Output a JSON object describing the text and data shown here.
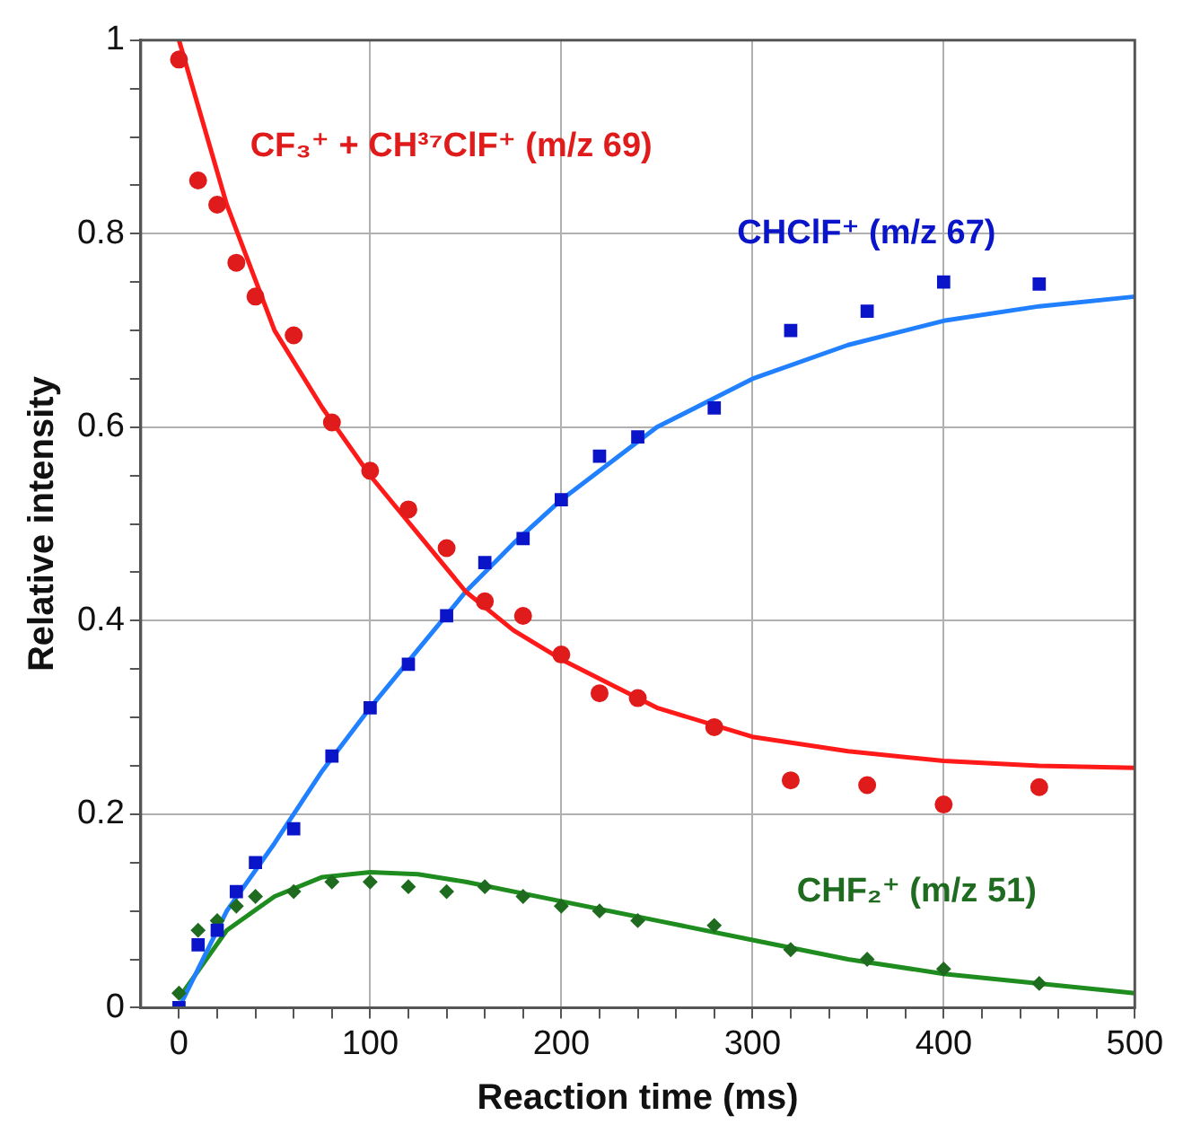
{
  "chart_data": {
    "type": "scatter",
    "xlabel": "Reaction time (ms)",
    "ylabel": "Relative intensity",
    "xlim": [
      -20,
      500
    ],
    "ylim": [
      0,
      1
    ],
    "xticks": [
      0,
      {
        "value": 20,
        "label": null
      },
      {
        "value": 40,
        "label": null
      },
      {
        "value": 60,
        "label": null
      },
      {
        "value": 80,
        "label": null
      },
      100,
      {
        "value": 120,
        "label": null
      },
      {
        "value": 140,
        "label": null
      },
      {
        "value": 160,
        "label": null
      },
      {
        "value": 180,
        "label": null
      },
      200,
      {
        "value": 220,
        "label": null
      },
      {
        "value": 240,
        "label": null
      },
      {
        "value": 260,
        "label": null
      },
      {
        "value": 280,
        "label": null
      },
      300,
      {
        "value": 320,
        "label": null
      },
      {
        "value": 340,
        "label": null
      },
      {
        "value": 360,
        "label": null
      },
      {
        "value": 380,
        "label": null
      },
      400,
      {
        "value": 420,
        "label": null
      },
      {
        "value": 440,
        "label": null
      },
      {
        "value": 460,
        "label": null
      },
      {
        "value": 480,
        "label": null
      },
      500
    ],
    "yticks": [
      0,
      {
        "value": 0.05,
        "label": null
      },
      {
        "value": 0.1,
        "label": null
      },
      {
        "value": 0.15,
        "label": null
      },
      0.2,
      {
        "value": 0.25,
        "label": null
      },
      {
        "value": 0.3,
        "label": null
      },
      {
        "value": 0.35,
        "label": null
      },
      0.4,
      {
        "value": 0.45,
        "label": null
      },
      {
        "value": 0.5,
        "label": null
      },
      {
        "value": 0.55,
        "label": null
      },
      0.6,
      {
        "value": 0.65,
        "label": null
      },
      {
        "value": 0.7,
        "label": null
      },
      {
        "value": 0.75,
        "label": null
      },
      0.8,
      {
        "value": 0.85,
        "label": null
      },
      {
        "value": 0.9,
        "label": null
      },
      {
        "value": 0.95,
        "label": null
      },
      1
    ],
    "grid": true,
    "legend": false,
    "series": [
      {
        "name": "CF₃⁺ + CH³⁷ClF⁺ (m/z 69)",
        "type": "scatter",
        "marker": "circle",
        "color": "#e01b1b",
        "x": [
          0,
          10,
          20,
          30,
          40,
          60,
          80,
          100,
          120,
          140,
          160,
          180,
          200,
          220,
          240,
          280,
          320,
          360,
          400,
          450
        ],
        "values": [
          0.98,
          0.855,
          0.83,
          0.77,
          0.735,
          0.695,
          0.605,
          0.555,
          0.515,
          0.475,
          0.42,
          0.405,
          0.365,
          0.325,
          0.32,
          0.29,
          0.235,
          0.23,
          0.21,
          0.228
        ]
      },
      {
        "name": "CHClF⁺ (m/z 67)",
        "type": "scatter",
        "marker": "square",
        "color": "#0a14c8",
        "x": [
          0,
          10,
          20,
          30,
          40,
          60,
          80,
          100,
          120,
          140,
          160,
          180,
          200,
          220,
          240,
          280,
          320,
          360,
          400,
          450
        ],
        "values": [
          0.0,
          0.065,
          0.08,
          0.12,
          0.15,
          0.185,
          0.26,
          0.31,
          0.355,
          0.405,
          0.46,
          0.485,
          0.525,
          0.57,
          0.59,
          0.62,
          0.7,
          0.72,
          0.75,
          0.748
        ]
      },
      {
        "name": "CHF₂⁺ (m/z 51)",
        "type": "scatter",
        "marker": "diamond",
        "color": "#1f6b1f",
        "x": [
          0,
          10,
          20,
          30,
          40,
          60,
          80,
          100,
          120,
          140,
          160,
          180,
          200,
          220,
          240,
          280,
          320,
          360,
          400,
          450
        ],
        "values": [
          0.015,
          0.08,
          0.09,
          0.105,
          0.115,
          0.12,
          0.13,
          0.13,
          0.125,
          0.12,
          0.125,
          0.115,
          0.105,
          0.1,
          0.09,
          0.085,
          0.06,
          0.05,
          0.04,
          0.025
        ]
      },
      {
        "type": "line",
        "marker": "none",
        "color": "#ff1a1a",
        "x": [
          0,
          25,
          50,
          75,
          100,
          125,
          150,
          175,
          200,
          250,
          300,
          350,
          400,
          450,
          500
        ],
        "values": [
          1.0,
          0.83,
          0.7,
          0.62,
          0.55,
          0.49,
          0.43,
          0.39,
          0.36,
          0.31,
          0.28,
          0.265,
          0.255,
          0.25,
          0.248
        ]
      },
      {
        "type": "line",
        "marker": "none",
        "color": "#2080ff",
        "x": [
          0,
          25,
          50,
          75,
          100,
          125,
          150,
          175,
          200,
          250,
          300,
          350,
          400,
          450,
          500
        ],
        "values": [
          0.0,
          0.1,
          0.17,
          0.245,
          0.31,
          0.37,
          0.43,
          0.48,
          0.525,
          0.6,
          0.65,
          0.685,
          0.71,
          0.725,
          0.735
        ]
      },
      {
        "type": "line",
        "marker": "none",
        "color": "#1e8c1e",
        "x": [
          0,
          25,
          50,
          75,
          100,
          125,
          150,
          200,
          250,
          300,
          350,
          400,
          450,
          500
        ],
        "values": [
          0.01,
          0.08,
          0.115,
          0.135,
          0.14,
          0.138,
          0.13,
          0.11,
          0.09,
          0.07,
          0.05,
          0.035,
          0.025,
          0.015
        ]
      }
    ]
  }
}
